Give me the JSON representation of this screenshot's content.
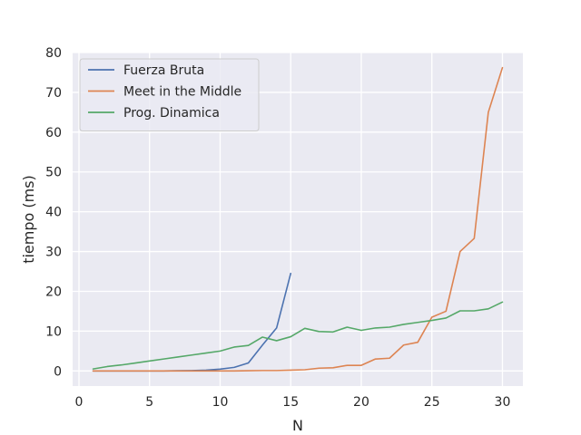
{
  "chart_data": {
    "type": "line",
    "title": "",
    "xlabel": "N",
    "ylabel": "tiempo (ms)",
    "xlim": [
      -0.45,
      31.45
    ],
    "ylim": [
      -3.8,
      80
    ],
    "x_ticks": [
      0,
      5,
      10,
      15,
      20,
      25,
      30
    ],
    "y_ticks": [
      0,
      10,
      20,
      30,
      40,
      50,
      60,
      70,
      80
    ],
    "grid": true,
    "legend_position": "top-left",
    "series": [
      {
        "name": "Fuerza Bruta",
        "color": "#4c72b0",
        "x": [
          1,
          2,
          3,
          4,
          5,
          6,
          7,
          8,
          9,
          10,
          11,
          12,
          13,
          14,
          15
        ],
        "y": [
          0.0,
          0.0,
          0.0,
          0.0,
          0.0,
          0.0,
          0.05,
          0.1,
          0.2,
          0.45,
          0.9,
          2.0,
          6.5,
          10.8,
          24.5
        ]
      },
      {
        "name": "Meet in the Middle",
        "color": "#dd8452",
        "x": [
          1,
          2,
          3,
          4,
          5,
          6,
          7,
          8,
          9,
          10,
          11,
          12,
          13,
          14,
          15,
          16,
          17,
          18,
          19,
          20,
          21,
          22,
          23,
          24,
          25,
          26,
          27,
          28,
          29,
          30
        ],
        "y": [
          0.0,
          0.0,
          0.0,
          0.0,
          0.0,
          0.0,
          0.0,
          0.0,
          0.0,
          0.0,
          0.0,
          0.05,
          0.1,
          0.1,
          0.2,
          0.3,
          0.7,
          0.8,
          1.4,
          1.4,
          3.0,
          3.2,
          6.5,
          7.2,
          13.5,
          15.0,
          30.0,
          33.3,
          65.0,
          76.2
        ]
      },
      {
        "name": "Prog. Dinamica",
        "color": "#55a868",
        "x": [
          1,
          2,
          3,
          4,
          5,
          6,
          7,
          8,
          9,
          10,
          11,
          12,
          13,
          14,
          15,
          16,
          17,
          18,
          19,
          20,
          21,
          22,
          23,
          24,
          25,
          26,
          27,
          28,
          29,
          30
        ],
        "y": [
          0.5,
          1.1,
          1.5,
          2.0,
          2.5,
          3.0,
          3.5,
          4.0,
          4.5,
          5.0,
          6.0,
          6.4,
          8.5,
          7.6,
          8.6,
          10.7,
          9.9,
          9.8,
          11.0,
          10.2,
          10.8,
          11.0,
          11.7,
          12.2,
          12.7,
          13.3,
          15.1,
          15.1,
          15.6,
          17.3
        ]
      }
    ]
  }
}
